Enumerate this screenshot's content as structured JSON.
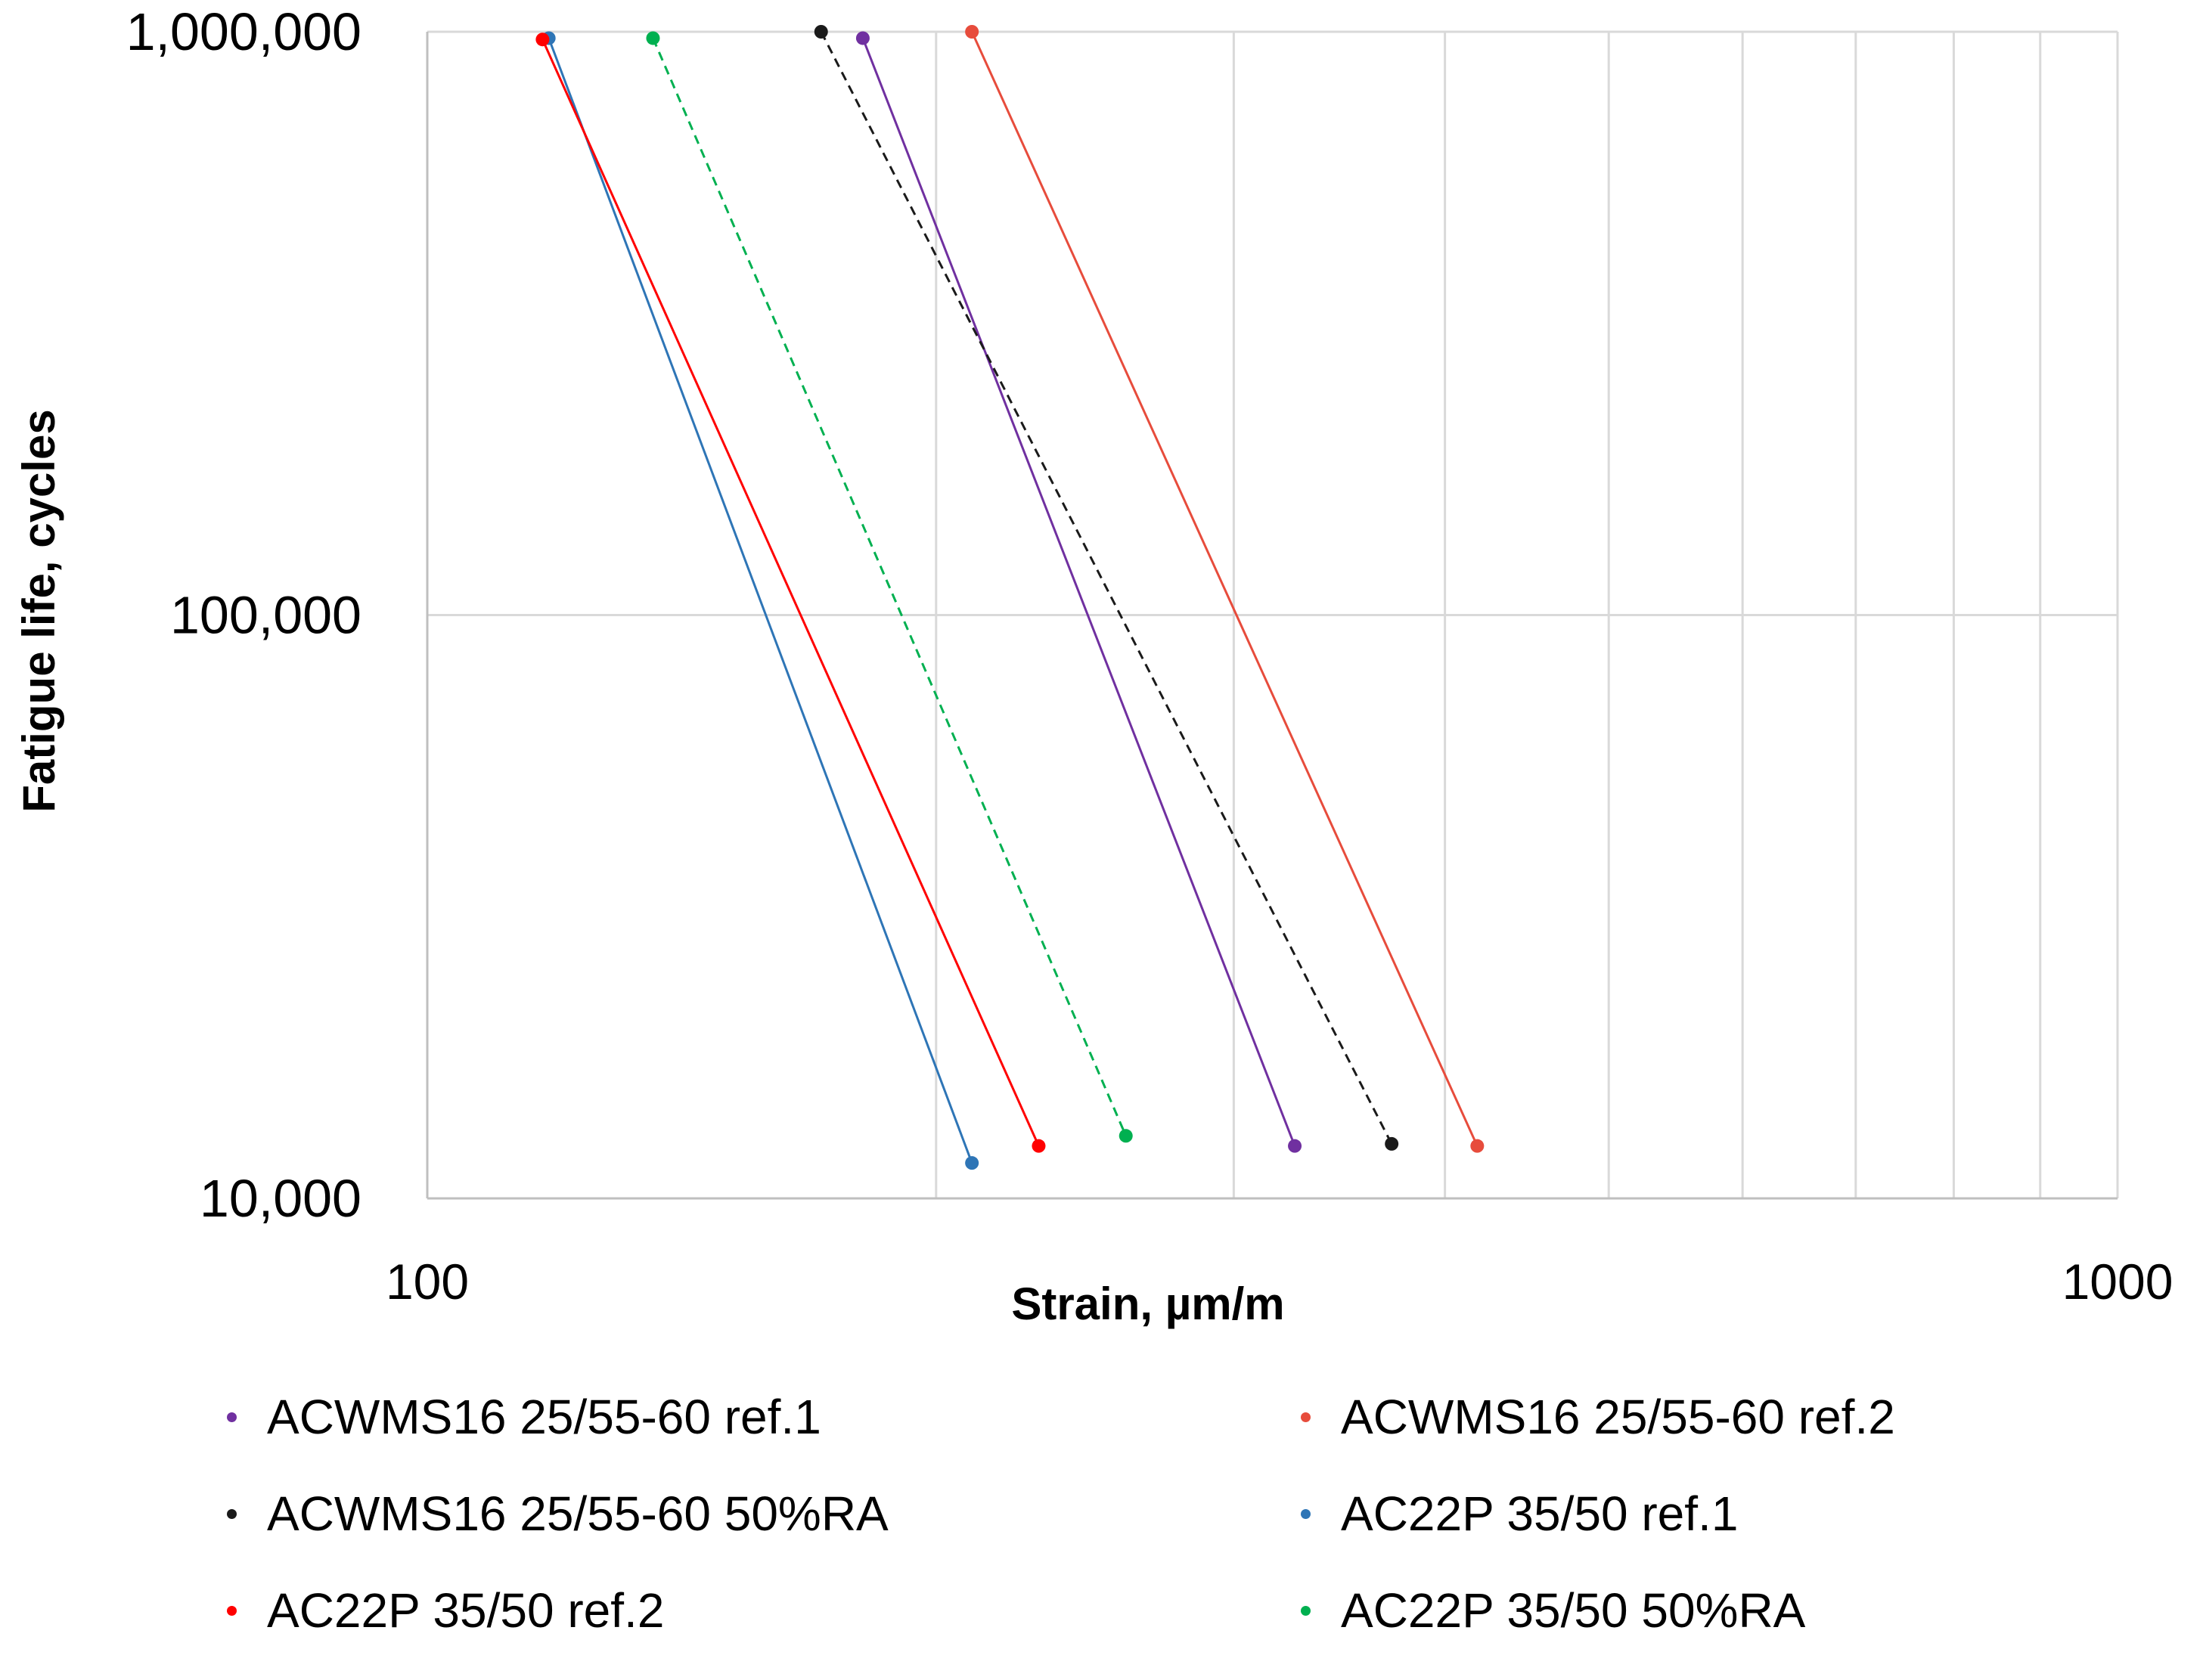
{
  "chart_data": {
    "type": "line",
    "title": "",
    "xlabel": "Strain, µm/m",
    "ylabel": "Fatigue life, cycles",
    "xscale": "log",
    "yscale": "log",
    "xlim": [
      100,
      1000
    ],
    "ylim": [
      10000,
      1000000
    ],
    "x_ticks": [
      {
        "value": 100,
        "label": "100"
      },
      {
        "value": 1000,
        "label": "1000"
      }
    ],
    "y_ticks": [
      {
        "value": 1000000,
        "label": "1,000,000"
      },
      {
        "value": 100000,
        "label": "100,000"
      },
      {
        "value": 10000,
        "label": "10,000"
      }
    ],
    "grid": true,
    "legend_position": "bottom",
    "series": [
      {
        "name": "ACWMS16 25/55-60 ref.1",
        "color": "#7030A0",
        "dash": "solid",
        "points": [
          {
            "x": 181,
            "y": 975000
          },
          {
            "x": 326,
            "y": 12300
          }
        ]
      },
      {
        "name": "ACWMS16 25/55-60 ref.2",
        "color": "#E74C3C",
        "dash": "solid",
        "points": [
          {
            "x": 210,
            "y": 1000000
          },
          {
            "x": 418,
            "y": 12300
          }
        ]
      },
      {
        "name": "ACWMS16 25/55-60 50%RA",
        "color": "#1A1A1A",
        "dash": "dashed",
        "points": [
          {
            "x": 171,
            "y": 1000000
          },
          {
            "x": 372,
            "y": 12400
          }
        ]
      },
      {
        "name": "AC22P 35/50 ref.1",
        "color": "#2E75B6",
        "dash": "solid",
        "points": [
          {
            "x": 118,
            "y": 975000
          },
          {
            "x": 210,
            "y": 11500
          }
        ]
      },
      {
        "name": "AC22P 35/50 ref.2",
        "color": "#FF0000",
        "dash": "solid",
        "points": [
          {
            "x": 117,
            "y": 970000
          },
          {
            "x": 230,
            "y": 12300
          }
        ]
      },
      {
        "name": "AC22P 35/50 50%RA",
        "color": "#00B050",
        "dash": "dashed",
        "points": [
          {
            "x": 136,
            "y": 975000
          },
          {
            "x": 259,
            "y": 12800
          }
        ]
      }
    ]
  }
}
